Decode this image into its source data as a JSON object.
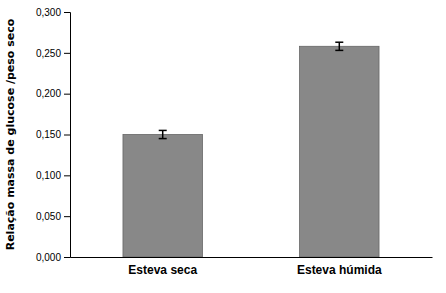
{
  "chart_data": {
    "type": "bar",
    "categories": [
      "Esteva seca",
      "Esteva húmida"
    ],
    "values": [
      0.15,
      0.258
    ],
    "errors": [
      0.005,
      0.005
    ],
    "color": "#888888",
    "ylabel": "Relação massa de glucose /peso seco",
    "ylim": [
      0,
      0.3
    ],
    "yticks": [
      {
        "value": 0.0,
        "label": "0,000"
      },
      {
        "value": 0.05,
        "label": "0,050"
      },
      {
        "value": 0.1,
        "label": "0,100"
      },
      {
        "value": 0.15,
        "label": "0,150"
      },
      {
        "value": 0.2,
        "label": "0,200"
      },
      {
        "value": 0.25,
        "label": "0,250"
      },
      {
        "value": 0.3,
        "label": "0,300"
      }
    ],
    "grid": false
  }
}
